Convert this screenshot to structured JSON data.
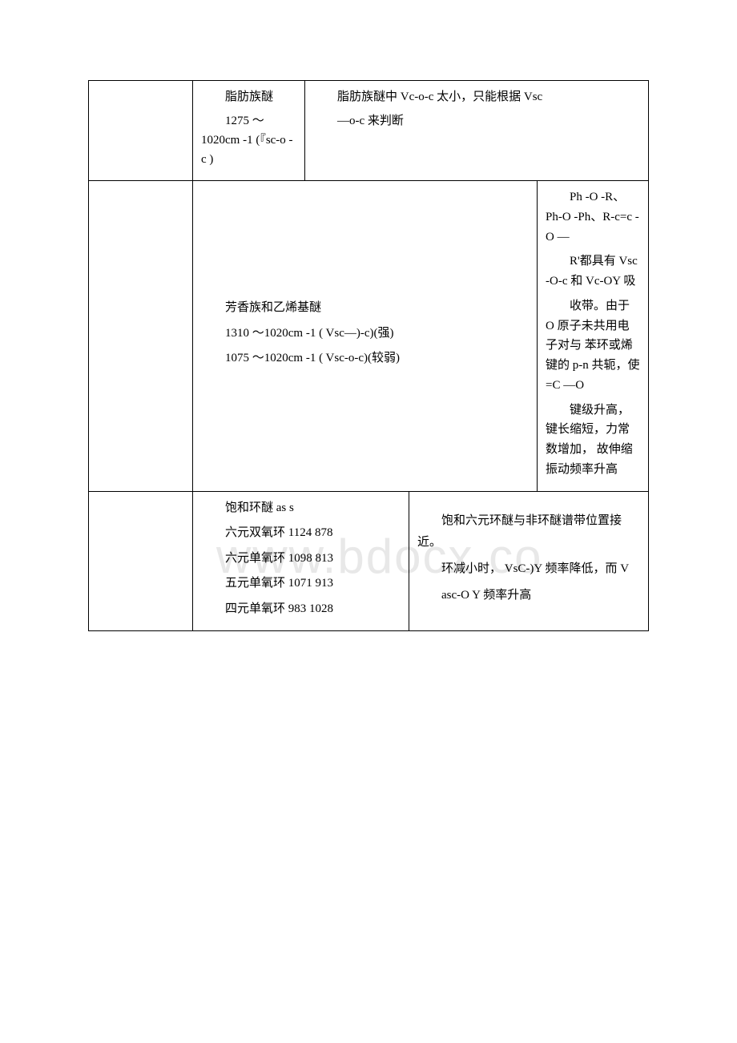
{
  "watermark": "www.bdocx.co",
  "row1": {
    "col2_p1": "脂肪族醚",
    "col2_p2": "1275 ～1020cm -1 (『sc-o -c )",
    "col3_p1": "脂肪族醚中 Vc-o-c 太小，只能根据 Vsc",
    "col3_p2": "—o-c 来判断"
  },
  "row2": {
    "col2_p1": "芳香族和乙烯基醚",
    "col2_p2": "1310 ～1020cm -1 ( Vsc—)-c)(强)",
    "col2_p3": "1075 ～1020cm -1 ( Vsc-o-c)(较弱)",
    "col3_p1": "Ph -O -R、Ph-O -Ph、R-c=c -O —",
    "col3_p2": "R'都具有 Vsc -O-c 和 Vc-OY 吸",
    "col3_p3": "收带。由于 O 原子未共用电子对与 苯环或烯键的 p-n 共轭，使=C —O",
    "col3_p4": "键级升高，键长缩短，力常数增加， 故伸缩振动频率升高"
  },
  "row3": {
    "col2_p1": "饱和环醚 as s",
    "col2_p2": "六元双氧环 1124 878",
    "col2_p3": "六元单氧环 1098 813",
    "col2_p4": "五元单氧环 1071 913",
    "col2_p5": "四元单氧环 983 1028",
    "col3_p1": "饱和六元环醚与非环醚谱带位置接近。",
    "col3_p2": "环减小时， VsC-)Y 频率降低，而 V",
    "col3_p3": "asc-O Y 频率升高"
  }
}
